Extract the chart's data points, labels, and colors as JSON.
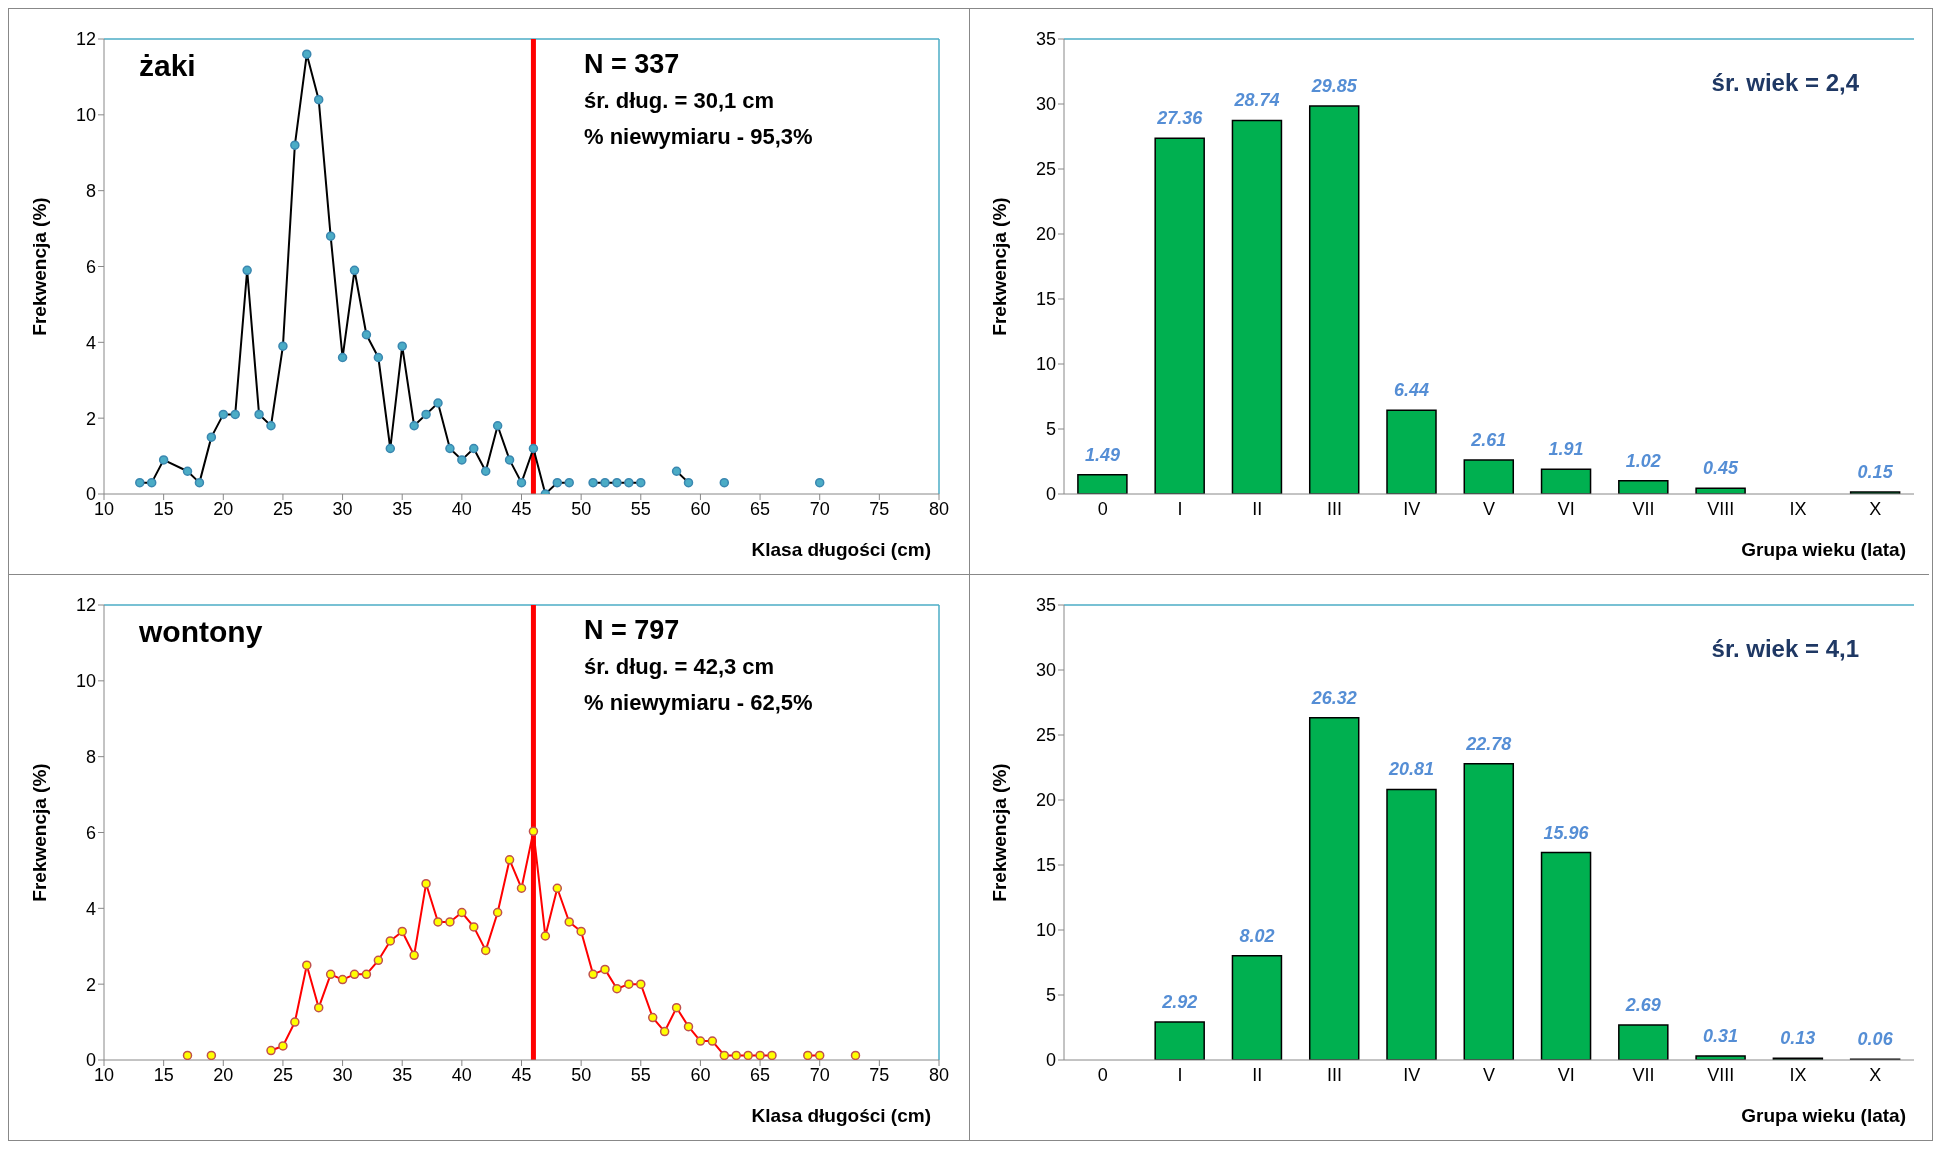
{
  "chart_data": [
    {
      "type": "line",
      "xlabel": "Klasa długości (cm)",
      "ylabel": "Frekwencja (%)",
      "annotations": [
        "żaki",
        "N = 337",
        "śr. dług. = 30,1 cm",
        "% niewymiaru - 95,3%"
      ],
      "xlim": [
        10,
        80
      ],
      "xticks": [
        10,
        15,
        20,
        25,
        30,
        35,
        40,
        45,
        50,
        55,
        60,
        65,
        70,
        75,
        80
      ],
      "ylim": [
        0,
        12
      ],
      "yticks": [
        0,
        2,
        4,
        6,
        8,
        10,
        12
      ],
      "grid": false,
      "marker": "circle",
      "series": [
        {
          "color": "#000000",
          "x": [
            13,
            14,
            15,
            17,
            18,
            19,
            20,
            21,
            22,
            23,
            24,
            25,
            26,
            27,
            28,
            29,
            30,
            31,
            32,
            33,
            34,
            35,
            36,
            37,
            38,
            39,
            40,
            41,
            42,
            43,
            44,
            45,
            46,
            47,
            48,
            49,
            50,
            51,
            52,
            53,
            54,
            55,
            56,
            58,
            59,
            60,
            62,
            63,
            70
          ],
          "values": [
            0.3,
            0.3,
            0.9,
            0.6,
            0.3,
            1.5,
            2.1,
            2.1,
            5.9,
            2.1,
            1.8,
            3.9,
            9.2,
            11.6,
            10.4,
            6.8,
            3.6,
            5.9,
            4.2,
            3.6,
            1.2,
            3.9,
            1.8,
            2.1,
            2.4,
            1.2,
            0.9,
            1.2,
            0.6,
            1.8,
            0.9,
            0.3,
            1.2,
            0,
            0.3,
            0.3,
            null,
            0.3,
            0.3,
            0.3,
            0.3,
            0.3,
            null,
            0.6,
            0.3,
            null,
            0.3,
            null,
            0.3
          ],
          "colors": [
            "#4bacc6",
            "#4bacc6",
            "#4bacc6",
            "#4bacc6",
            "#4bacc6",
            "#4bacc6",
            "#4bacc6",
            "#4bacc6",
            "#4bacc6",
            "#4bacc6",
            "#4bacc6",
            "#4bacc6",
            "#4bacc6",
            "#4bacc6",
            "#4bacc6",
            "#4bacc6",
            "#4bacc6",
            "#4bacc6",
            "#4bacc6",
            "#4bacc6",
            "#4bacc6",
            "#4bacc6",
            "#4bacc6",
            "#4bacc6",
            "#4bacc6",
            "#4bacc6",
            "#4bacc6",
            "#4bacc6",
            "#4bacc6",
            "#4bacc6",
            "#4bacc6",
            "#4bacc6",
            "#4bacc6",
            "#4bacc6",
            "#4bacc6",
            "#4bacc6",
            "#4bacc6",
            "#4bacc6",
            "#4bacc6",
            "#4bacc6",
            "#4bacc6",
            "#4bacc6",
            "#4bacc6",
            "#4bacc6",
            "#4bacc6",
            "#4bacc6",
            "#4bacc6",
            "#4bacc6",
            "#4bacc6"
          ]
        }
      ],
      "ref_lines": [
        {
          "axis": "x",
          "value": 46,
          "color": "#ff0000"
        }
      ]
    },
    {
      "type": "bar",
      "xlabel": "Grupa wieku (lata)",
      "ylabel": "Frekwencja (%)",
      "annotations": [
        "śr. wiek = 2,4"
      ],
      "categories": [
        "0",
        "I",
        "II",
        "III",
        "IV",
        "V",
        "VI",
        "VII",
        "VIII",
        "IX",
        "X"
      ],
      "values": [
        1.49,
        27.36,
        28.74,
        29.85,
        6.44,
        2.61,
        1.91,
        1.02,
        0.45,
        null,
        0.15
      ],
      "color": "#00b050",
      "ylim": [
        0,
        35
      ],
      "yticks": [
        0,
        5,
        10,
        15,
        20,
        25,
        30,
        35
      ],
      "grid": false,
      "data_labels": true
    },
    {
      "type": "line",
      "xlabel": "Klasa długości (cm)",
      "ylabel": "Frekwencja (%)",
      "annotations": [
        "wontony",
        "N = 797",
        "śr. dług. = 42,3 cm",
        "% niewymiaru - 62,5%"
      ],
      "xlim": [
        10,
        80
      ],
      "xticks": [
        10,
        15,
        20,
        25,
        30,
        35,
        40,
        45,
        50,
        55,
        60,
        65,
        70,
        75,
        80
      ],
      "ylim": [
        0,
        12
      ],
      "yticks": [
        0,
        2,
        4,
        6,
        8,
        10,
        12
      ],
      "grid": false,
      "marker": "circle",
      "series": [
        {
          "color": "#ff0000",
          "x": [
            17,
            18,
            19,
            20,
            24,
            25,
            26,
            27,
            28,
            29,
            30,
            31,
            32,
            33,
            34,
            35,
            36,
            37,
            38,
            39,
            40,
            41,
            42,
            43,
            44,
            45,
            46,
            47,
            48,
            49,
            50,
            51,
            52,
            53,
            54,
            55,
            56,
            57,
            58,
            59,
            60,
            61,
            62,
            63,
            64,
            65,
            66,
            67,
            69,
            70,
            71,
            73
          ],
          "values": [
            0.12,
            null,
            0.12,
            null,
            0.25,
            0.37,
            1.0,
            2.5,
            1.38,
            2.26,
            2.12,
            2.26,
            2.26,
            2.63,
            3.14,
            3.39,
            2.76,
            4.65,
            3.64,
            3.64,
            3.89,
            3.51,
            2.89,
            3.89,
            5.28,
            4.53,
            6.03,
            3.27,
            4.53,
            3.64,
            3.39,
            2.26,
            2.39,
            1.88,
            2.0,
            2.0,
            1.12,
            0.75,
            1.38,
            0.88,
            0.5,
            0.5,
            0.12,
            0.12,
            0.12,
            0.12,
            0.12,
            null,
            0.12,
            0.12,
            null,
            0.12
          ],
          "colors": [
            "#ffff00",
            "#ffff00",
            "#ffff00",
            "#ffff00",
            "#ffff00",
            "#ffff00",
            "#ffff00",
            "#ffff00",
            "#ffff00",
            "#ffff00",
            "#ffff00",
            "#ffff00",
            "#ffff00",
            "#ffff00",
            "#ffff00",
            "#ffff00",
            "#ffff00",
            "#ffff00",
            "#ffff00",
            "#ffff00",
            "#ffff00",
            "#ffff00",
            "#ffff00",
            "#ffff00",
            "#ffff00",
            "#ffff00",
            "#ffff00",
            "#ffff00",
            "#ffff00",
            "#ffff00",
            "#ffff00",
            "#ffff00",
            "#ffff00",
            "#ffff00",
            "#ffff00",
            "#ffff00",
            "#ffff00",
            "#ffff00",
            "#ffff00",
            "#ffff00",
            "#ffff00",
            "#ffff00",
            "#ffff00",
            "#ffff00",
            "#ffff00",
            "#ffff00",
            "#ffff00",
            "#ffff00",
            "#ffff00",
            "#ffff00",
            "#ffff00",
            "#ffff00"
          ]
        }
      ],
      "ref_lines": [
        {
          "axis": "x",
          "value": 46,
          "color": "#ff0000"
        }
      ]
    },
    {
      "type": "bar",
      "xlabel": "Grupa wieku (lata)",
      "ylabel": "Frekwencja (%)",
      "annotations": [
        "śr. wiek = 4,1"
      ],
      "categories": [
        "0",
        "I",
        "II",
        "III",
        "IV",
        "V",
        "VI",
        "VII",
        "VIII",
        "IX",
        "X"
      ],
      "values": [
        null,
        2.92,
        8.02,
        26.32,
        20.81,
        22.78,
        15.96,
        2.69,
        0.31,
        0.13,
        0.06
      ],
      "color": "#00b050",
      "ylim": [
        0,
        35
      ],
      "yticks": [
        0,
        5,
        10,
        15,
        20,
        25,
        30,
        35
      ],
      "grid": false,
      "data_labels": true
    }
  ]
}
